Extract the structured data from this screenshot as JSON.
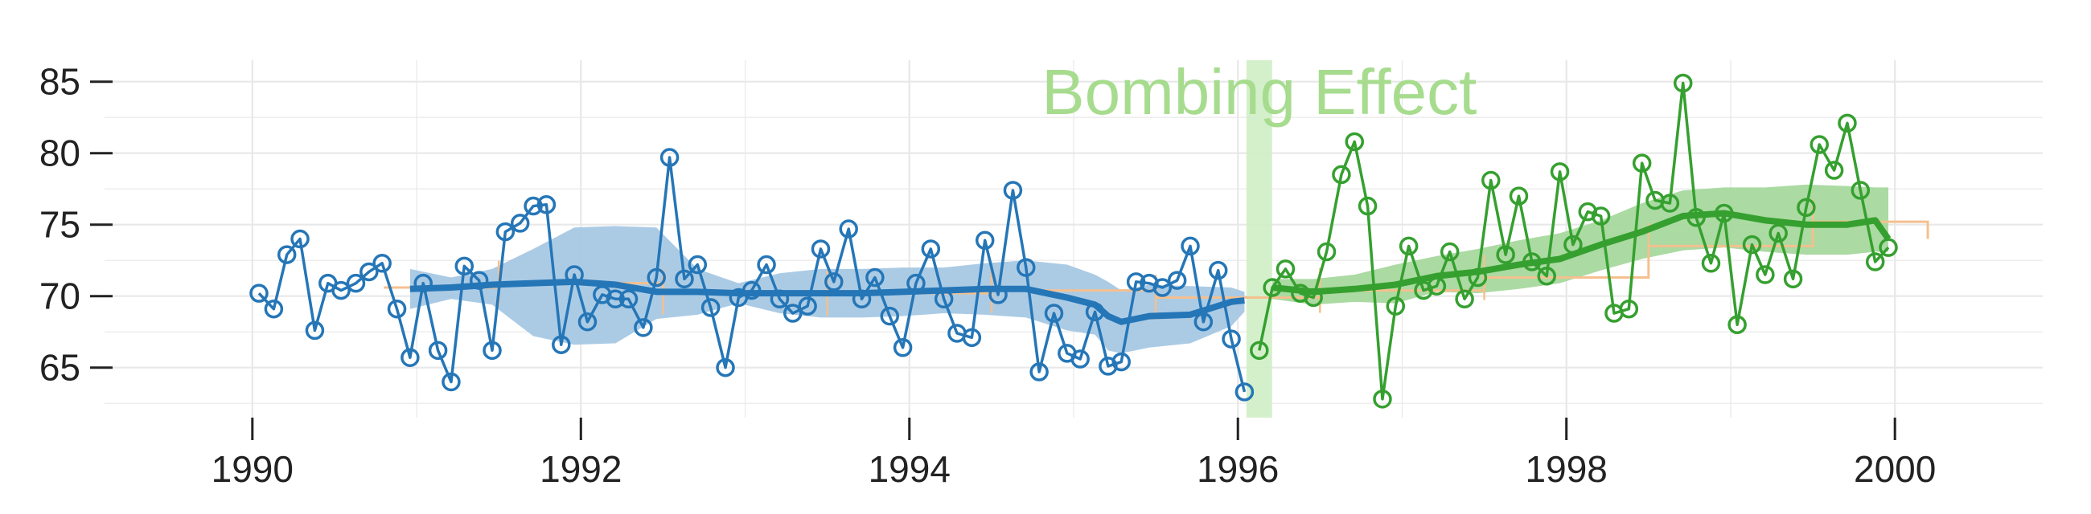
{
  "chart_data": {
    "type": "line",
    "title": "",
    "xlabel": "",
    "ylabel": "",
    "xlim": [
      1989.1,
      2000.9
    ],
    "ylim": [
      61.5,
      86.5
    ],
    "grid": true,
    "x_ticks": [
      1990,
      1992,
      1994,
      1996,
      1998,
      2000
    ],
    "x_tick_labels": [
      "1990",
      "1992",
      "1994",
      "1996",
      "1998",
      "2000"
    ],
    "y_ticks": [
      65,
      70,
      75,
      80,
      85
    ],
    "y_tick_labels": [
      "65",
      "70",
      "75",
      "80",
      "85"
    ],
    "colors": {
      "before": "#2576b7",
      "before_band": "#a6c8e4",
      "after": "#35a02f",
      "after_band": "#a6d89d",
      "trend": "#f4c08f",
      "bombing_band": "#cfeec5",
      "annotation": "#a7dc8f",
      "grid": "#e8e8e8"
    },
    "annotation": {
      "text": "Bombing Effect",
      "x": 1996.13
    },
    "series": [
      {
        "segment": "before",
        "x": [
          1990.04,
          1990.13,
          1990.21,
          1990.29,
          1990.38,
          1990.46,
          1990.54,
          1990.63,
          1990.71,
          1990.79,
          1990.88,
          1990.96,
          1991.04,
          1991.13,
          1991.21,
          1991.29,
          1991.38,
          1991.46,
          1991.54,
          1991.63,
          1991.71,
          1991.79,
          1991.88,
          1991.96,
          1992.04,
          1992.13,
          1992.21,
          1992.29,
          1992.38,
          1992.46,
          1992.54,
          1992.63,
          1992.71,
          1992.79,
          1992.88,
          1992.96,
          1993.04,
          1993.13,
          1993.21,
          1993.29,
          1993.38,
          1993.46,
          1993.54,
          1993.63,
          1993.71,
          1993.79,
          1993.88,
          1993.96,
          1994.04,
          1994.13,
          1994.21,
          1994.29,
          1994.38,
          1994.46,
          1994.54,
          1994.63,
          1994.71,
          1994.79,
          1994.88,
          1994.96,
          1995.04,
          1995.13,
          1995.21,
          1995.29,
          1995.38,
          1995.46,
          1995.54,
          1995.63,
          1995.71,
          1995.79,
          1995.88,
          1995.96,
          1996.04
        ],
        "y": [
          70.2,
          69.1,
          72.9,
          74.0,
          67.6,
          70.9,
          70.4,
          70.9,
          71.7,
          72.3,
          69.1,
          65.7,
          70.9,
          66.2,
          64.0,
          72.1,
          71.1,
          66.2,
          74.5,
          75.1,
          76.3,
          76.4,
          66.6,
          71.5,
          68.2,
          70.1,
          69.8,
          69.8,
          67.8,
          71.3,
          79.7,
          71.2,
          72.2,
          69.2,
          65.0,
          69.9,
          70.4,
          72.2,
          69.8,
          68.8,
          69.3,
          73.3,
          71.0,
          74.7,
          69.8,
          71.3,
          68.6,
          66.4,
          70.9,
          73.3,
          69.8,
          67.4,
          67.1,
          73.9,
          70.1,
          77.4,
          72.0,
          64.7,
          68.8,
          66.0,
          65.6,
          68.9,
          65.1,
          65.4,
          71.0,
          70.9,
          70.6,
          71.1,
          73.5,
          68.2,
          71.8,
          67.0,
          63.3
        ]
      },
      {
        "segment": "after",
        "x": [
          1996.13,
          1996.21,
          1996.29,
          1996.38,
          1996.46,
          1996.54,
          1996.63,
          1996.71,
          1996.79,
          1996.88,
          1996.96,
          1997.04,
          1997.13,
          1997.21,
          1997.29,
          1997.38,
          1997.46,
          1997.54,
          1997.63,
          1997.71,
          1997.79,
          1997.88,
          1997.96,
          1998.04,
          1998.13,
          1998.21,
          1998.29,
          1998.38,
          1998.46,
          1998.54,
          1998.63,
          1998.71,
          1998.79,
          1998.88,
          1998.96,
          1999.04,
          1999.13,
          1999.21,
          1999.29,
          1999.38,
          1999.46,
          1999.54,
          1999.63,
          1999.71,
          1999.79,
          1999.88,
          1999.96
        ],
        "y": [
          66.2,
          70.6,
          71.9,
          70.2,
          69.9,
          73.1,
          78.5,
          80.8,
          76.3,
          62.8,
          69.3,
          73.5,
          70.4,
          70.7,
          73.1,
          69.8,
          71.3,
          78.1,
          72.9,
          77.0,
          72.4,
          71.4,
          78.7,
          73.6,
          75.9,
          75.6,
          68.8,
          69.1,
          79.3,
          76.7,
          76.5,
          84.9,
          75.5,
          72.3,
          75.8,
          68.0,
          73.6,
          71.5,
          74.4,
          71.2,
          76.2,
          80.6,
          78.8,
          82.1,
          77.4,
          72.4,
          73.4
        ]
      },
      {
        "segment": "before",
        "kind": "rolling-mean",
        "x": [
          1990.96,
          1991.21,
          1991.46,
          1991.71,
          1991.96,
          1992.21,
          1992.46,
          1992.71,
          1992.96,
          1993.21,
          1993.46,
          1993.71,
          1993.96,
          1994.21,
          1994.46,
          1994.71,
          1994.96,
          1995.13,
          1995.21,
          1995.29,
          1995.46,
          1995.71,
          1995.96,
          1996.04
        ],
        "y": [
          70.5,
          70.6,
          70.8,
          70.9,
          71.0,
          70.8,
          70.3,
          70.3,
          70.2,
          70.2,
          70.2,
          70.2,
          70.3,
          70.4,
          70.5,
          70.5,
          69.9,
          69.4,
          68.6,
          68.2,
          68.6,
          68.7,
          69.6,
          69.7
        ],
        "band_upper": [
          71.9,
          71.3,
          71.9,
          73.3,
          74.8,
          74.9,
          74.8,
          71.9,
          70.9,
          71.6,
          71.9,
          71.9,
          72.0,
          72.0,
          72.3,
          72.5,
          72.2,
          71.5,
          71.0,
          70.4,
          70.8,
          70.7,
          70.6,
          70.3
        ],
        "band_lower": [
          69.1,
          69.8,
          69.4,
          67.2,
          66.6,
          66.7,
          68.4,
          68.7,
          69.5,
          68.8,
          68.5,
          68.5,
          68.6,
          68.8,
          68.7,
          68.5,
          67.6,
          67.3,
          66.2,
          66.0,
          66.4,
          66.7,
          67.9,
          68.9
        ]
      },
      {
        "segment": "after",
        "kind": "rolling-mean",
        "x": [
          1996.21,
          1996.46,
          1996.71,
          1996.96,
          1997.21,
          1997.46,
          1997.71,
          1997.96,
          1998.21,
          1998.46,
          1998.71,
          1998.96,
          1999.21,
          1999.46,
          1999.71,
          1999.88,
          1999.96
        ],
        "y": [
          70.6,
          70.3,
          70.5,
          70.8,
          71.4,
          71.7,
          72.2,
          72.6,
          73.6,
          74.5,
          75.6,
          75.8,
          75.3,
          75.0,
          75.0,
          75.3,
          74.0
        ],
        "band_upper": [
          71.2,
          71.2,
          71.5,
          72.2,
          72.8,
          73.3,
          73.9,
          74.4,
          75.3,
          76.5,
          77.4,
          77.6,
          77.6,
          77.8,
          77.7,
          77.6,
          77.6
        ],
        "band_lower": [
          69.8,
          69.4,
          69.6,
          69.5,
          70.3,
          70.2,
          70.5,
          70.9,
          71.8,
          72.6,
          73.2,
          73.4,
          73.1,
          72.9,
          72.9,
          73.1,
          73.1
        ]
      },
      {
        "kind": "trend-step",
        "x": [
          1990.8,
          1991.5,
          1992.5,
          1993.5,
          1994.5,
          1995.5,
          1996.5,
          1997.5,
          1998.5,
          1999.5,
          2000.2
        ],
        "y": [
          70.6,
          70.9,
          70.3,
          70.2,
          70.4,
          69.9,
          70.4,
          71.3,
          73.5,
          75.2,
          74.0
        ]
      }
    ]
  }
}
